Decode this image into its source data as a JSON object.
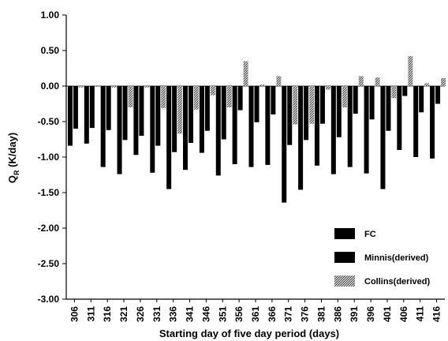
{
  "chart_data": {
    "type": "bar",
    "xlabel": "Starting day of five day period (days)",
    "ylabel": "Q",
    "ylabel_sub": "R",
    "ylabel_unit": " (K/day)",
    "ylim": [
      -3.0,
      1.0
    ],
    "yticks": [
      1.0,
      0.5,
      0.0,
      -0.5,
      -1.0,
      -1.5,
      -2.0,
      -2.5,
      -3.0
    ],
    "ytick_labels": [
      "1.00",
      "0.50",
      "0.00",
      "-0.50",
      "-1.00",
      "-1.50",
      "-2.00",
      "-2.50",
      "-3.00"
    ],
    "grid": false,
    "legend_position": "bottom-right",
    "categories": [
      "306",
      "311",
      "316",
      "321",
      "326",
      "331",
      "336",
      "341",
      "346",
      "351",
      "356",
      "361",
      "366",
      "371",
      "376",
      "381",
      "386",
      "391",
      "396",
      "401",
      "406",
      "411",
      "416"
    ],
    "series": [
      {
        "name": "FC",
        "color": "#000000",
        "pattern": "solid",
        "values": [
          -0.84,
          -0.81,
          -1.14,
          -1.24,
          -0.97,
          -1.22,
          -1.45,
          -1.18,
          -0.94,
          -1.26,
          -1.1,
          -1.14,
          -1.11,
          -1.64,
          -1.46,
          -1.12,
          -1.24,
          -1.14,
          -1.23,
          -1.45,
          -0.9,
          -1.0,
          -1.02
        ]
      },
      {
        "name": "Minnis(derived)",
        "color": "#000000",
        "pattern": "solid",
        "values": [
          -0.6,
          -0.59,
          -0.62,
          -0.76,
          -0.7,
          -0.84,
          -0.93,
          -0.8,
          -0.63,
          -0.75,
          -0.34,
          -0.51,
          -0.4,
          -0.83,
          -0.76,
          -0.53,
          -0.72,
          -0.39,
          -0.47,
          -0.63,
          -0.14,
          -0.37,
          -0.25
        ]
      },
      {
        "name": "Collins(derived)",
        "color": "#9a9a9a",
        "pattern": "stippled",
        "values": [
          -0.02,
          0.0,
          -0.02,
          -0.3,
          -0.02,
          -0.31,
          -0.67,
          -0.33,
          -0.13,
          -0.3,
          0.35,
          0.02,
          0.14,
          -0.54,
          -0.53,
          -0.05,
          -0.3,
          0.14,
          0.12,
          -0.17,
          0.42,
          0.04,
          0.11
        ]
      }
    ]
  }
}
